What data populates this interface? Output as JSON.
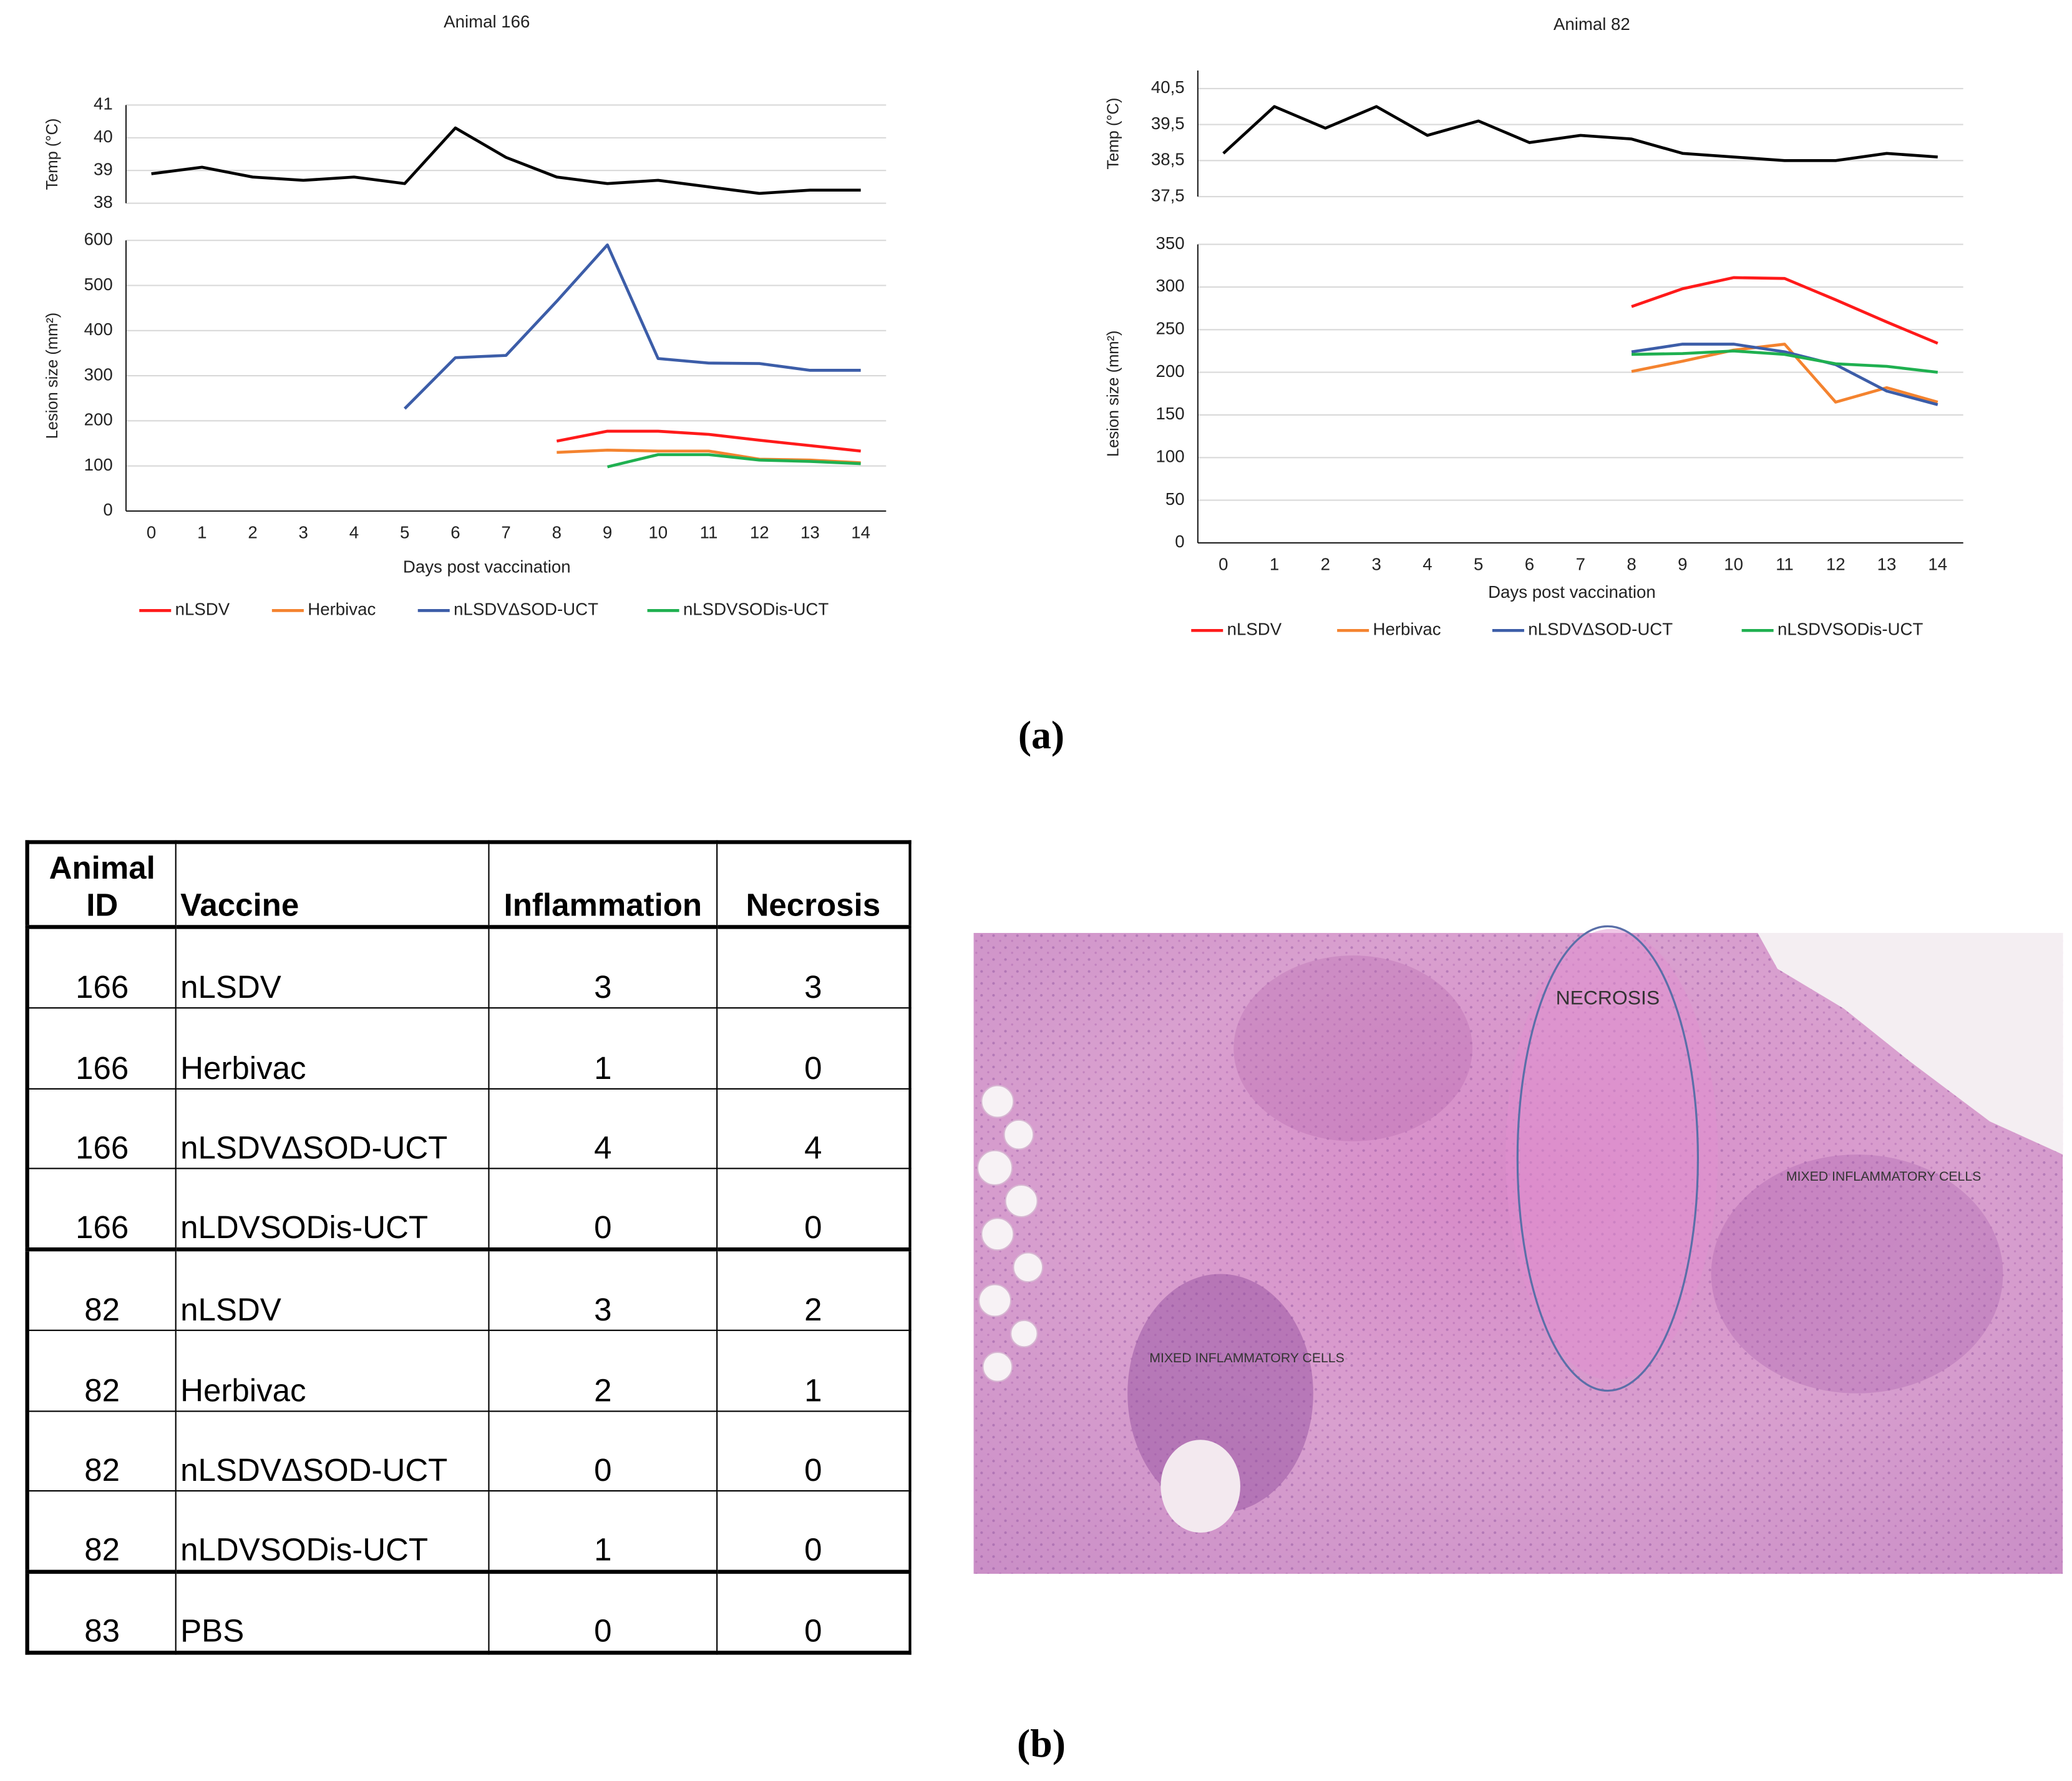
{
  "chart_data": [
    {
      "type": "line",
      "title": "Animal 166",
      "y_label": "Temp (°C)",
      "x": [
        0,
        1,
        2,
        3,
        4,
        5,
        6,
        7,
        8,
        9,
        10,
        11,
        12,
        13,
        14
      ],
      "values": [
        38.9,
        39.1,
        38.8,
        38.7,
        38.8,
        38.6,
        40.3,
        39.4,
        38.8,
        38.6,
        38.7,
        38.5,
        38.3,
        38.4,
        38.4
      ],
      "color": "#000000",
      "xlim": [
        -0.5,
        14.5
      ],
      "ylim": [
        38,
        41
      ],
      "yticks": [
        38,
        39,
        40,
        41
      ],
      "grid": true
    },
    {
      "type": "line",
      "y_label": "Lesion size (mm²)",
      "x_label": "Days post vaccination",
      "x": [
        0,
        1,
        2,
        3,
        4,
        5,
        6,
        7,
        8,
        9,
        10,
        11,
        12,
        13,
        14
      ],
      "xlim": [
        -0.5,
        14.5
      ],
      "xticks": [
        0,
        1,
        2,
        3,
        4,
        5,
        6,
        7,
        8,
        9,
        10,
        11,
        12,
        13,
        14
      ],
      "ylim": [
        0,
        600
      ],
      "yticks": [
        0,
        100,
        200,
        300,
        400,
        500,
        600
      ],
      "grid": true,
      "legend": "bottom",
      "series": [
        {
          "name": "nLSDV",
          "color": "#ff1a1a",
          "values": [
            null,
            null,
            null,
            null,
            null,
            null,
            null,
            null,
            155,
            177,
            177,
            170,
            157,
            145,
            133
          ]
        },
        {
          "name": "Herbivac",
          "color": "#f4832f",
          "values": [
            null,
            null,
            null,
            null,
            null,
            null,
            null,
            null,
            130,
            135,
            133,
            133,
            115,
            113,
            107
          ]
        },
        {
          "name": "nLSDVΔSOD-UCT",
          "color": "#3c5da8",
          "values": [
            null,
            null,
            null,
            null,
            null,
            227,
            340,
            345,
            465,
            590,
            338,
            328,
            327,
            312,
            312
          ]
        },
        {
          "name": "nLSDVSODis-UCT",
          "color": "#1fb050",
          "values": [
            null,
            null,
            null,
            null,
            null,
            null,
            null,
            null,
            null,
            98,
            125,
            125,
            113,
            110,
            105
          ]
        }
      ]
    },
    {
      "type": "line",
      "title": "Animal 82",
      "y_label": "Temp (°C)",
      "x": [
        0,
        1,
        2,
        3,
        4,
        5,
        6,
        7,
        8,
        9,
        10,
        11,
        12,
        13,
        14
      ],
      "values": [
        38.7,
        40.0,
        39.4,
        40.0,
        39.2,
        39.6,
        39.0,
        39.2,
        39.1,
        38.7,
        38.6,
        38.5,
        38.5,
        38.7,
        38.6
      ],
      "color": "#000000",
      "xlim": [
        -0.5,
        14.5
      ],
      "ylim": [
        37.5,
        41
      ],
      "yticks": [
        {
          "value": 37.5,
          "label": "37,5"
        },
        {
          "value": 38.5,
          "label": "38,5"
        },
        {
          "value": 39.5,
          "label": "39,5"
        },
        {
          "value": 40.5,
          "label": "40,5"
        }
      ],
      "grid": true
    },
    {
      "type": "line",
      "y_label": "Lesion size (mm²)",
      "x_label": "Days post vaccination",
      "x": [
        0,
        1,
        2,
        3,
        4,
        5,
        6,
        7,
        8,
        9,
        10,
        11,
        12,
        13,
        14
      ],
      "xlim": [
        -0.5,
        14.5
      ],
      "xticks": [
        0,
        1,
        2,
        3,
        4,
        5,
        6,
        7,
        8,
        9,
        10,
        11,
        12,
        13,
        14
      ],
      "ylim": [
        0,
        350
      ],
      "yticks": [
        0,
        50,
        100,
        150,
        200,
        250,
        300,
        350
      ],
      "grid": true,
      "legend": "bottom",
      "series": [
        {
          "name": "nLSDV",
          "color": "#ff1a1a",
          "values": [
            null,
            null,
            null,
            null,
            null,
            null,
            null,
            null,
            277,
            298,
            311,
            310,
            285,
            259,
            234
          ]
        },
        {
          "name": "Herbivac",
          "color": "#f4832f",
          "values": [
            null,
            null,
            null,
            null,
            null,
            null,
            null,
            null,
            201,
            213,
            226,
            233,
            165,
            182,
            165
          ]
        },
        {
          "name": "nLSDVΔSOD-UCT",
          "color": "#3c5da8",
          "values": [
            null,
            null,
            null,
            null,
            null,
            null,
            null,
            null,
            224,
            233,
            233,
            224,
            209,
            178,
            162
          ]
        },
        {
          "name": "nLSDVSODis-UCT",
          "color": "#1fb050",
          "values": [
            null,
            null,
            null,
            null,
            null,
            null,
            null,
            null,
            221,
            222,
            225,
            221,
            210,
            207,
            200
          ]
        }
      ]
    }
  ],
  "figure": {
    "panel_a": "(a)",
    "panel_b": "(b)",
    "table": {
      "header": [
        "Animal ID",
        "Vaccine",
        "Inflammation",
        "Necrosis"
      ],
      "rows": [
        [
          166,
          "nLSDV",
          3,
          3
        ],
        [
          166,
          "Herbivac",
          1,
          0
        ],
        [
          166,
          "nLSDVΔSOD-UCT",
          4,
          4
        ],
        [
          166,
          "nLDVSODis-UCT",
          0,
          0
        ],
        [
          82,
          "nLSDV",
          3,
          2
        ],
        [
          82,
          "Herbivac",
          2,
          1
        ],
        [
          82,
          "nLSDVΔSOD-UCT",
          0,
          0
        ],
        [
          82,
          "nLDVSODis-UCT",
          1,
          0
        ],
        [
          83,
          "PBS",
          0,
          0
        ]
      ]
    },
    "image_labels": {
      "necrosis": "NECROSIS",
      "cells_right": "MIXED INFLAMMATORY CELLS",
      "cells_left": "MIXED INFLAMMATORY CELLS"
    }
  }
}
